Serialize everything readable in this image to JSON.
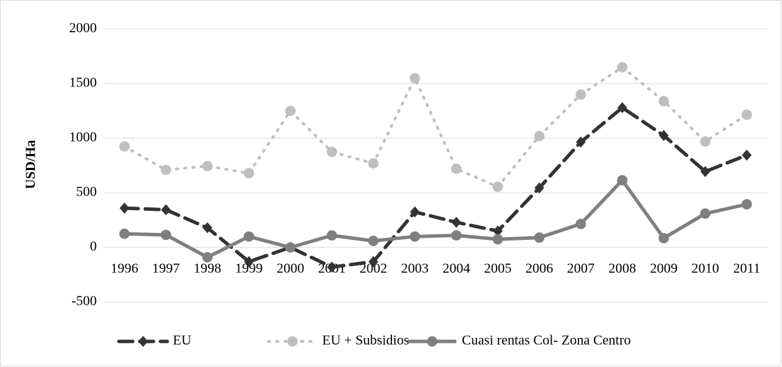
{
  "chart_data": {
    "type": "line",
    "y_label": "USD/Ha",
    "categories": [
      "1996",
      "1997",
      "1998",
      "1999",
      "2000",
      "2001",
      "2002",
      "2003",
      "2004",
      "2005",
      "2006",
      "2007",
      "2008",
      "2009",
      "2010",
      "2011"
    ],
    "series": [
      {
        "name": "EU",
        "color": "#333333",
        "values": [
          360,
          345,
          180,
          -130,
          0,
          -180,
          -130,
          325,
          230,
          150,
          545,
          965,
          1280,
          1025,
          695,
          845
        ]
      },
      {
        "name": "EU + Subsidios",
        "color": "#bfbfbf",
        "values": [
          925,
          710,
          745,
          680,
          1250,
          875,
          770,
          1550,
          720,
          555,
          1020,
          1400,
          1650,
          1340,
          970,
          1215
        ]
      },
      {
        "name": "Cuasi rentas Col- Zona Centro",
        "color": "#7f7f7f",
        "values": [
          125,
          115,
          -90,
          100,
          0,
          110,
          60,
          100,
          110,
          75,
          90,
          215,
          615,
          85,
          310,
          395
        ]
      }
    ],
    "ylim": [
      -500,
      2000
    ],
    "yticks": [
      -500,
      0,
      500,
      1000,
      1500,
      2000
    ],
    "grid": true
  }
}
